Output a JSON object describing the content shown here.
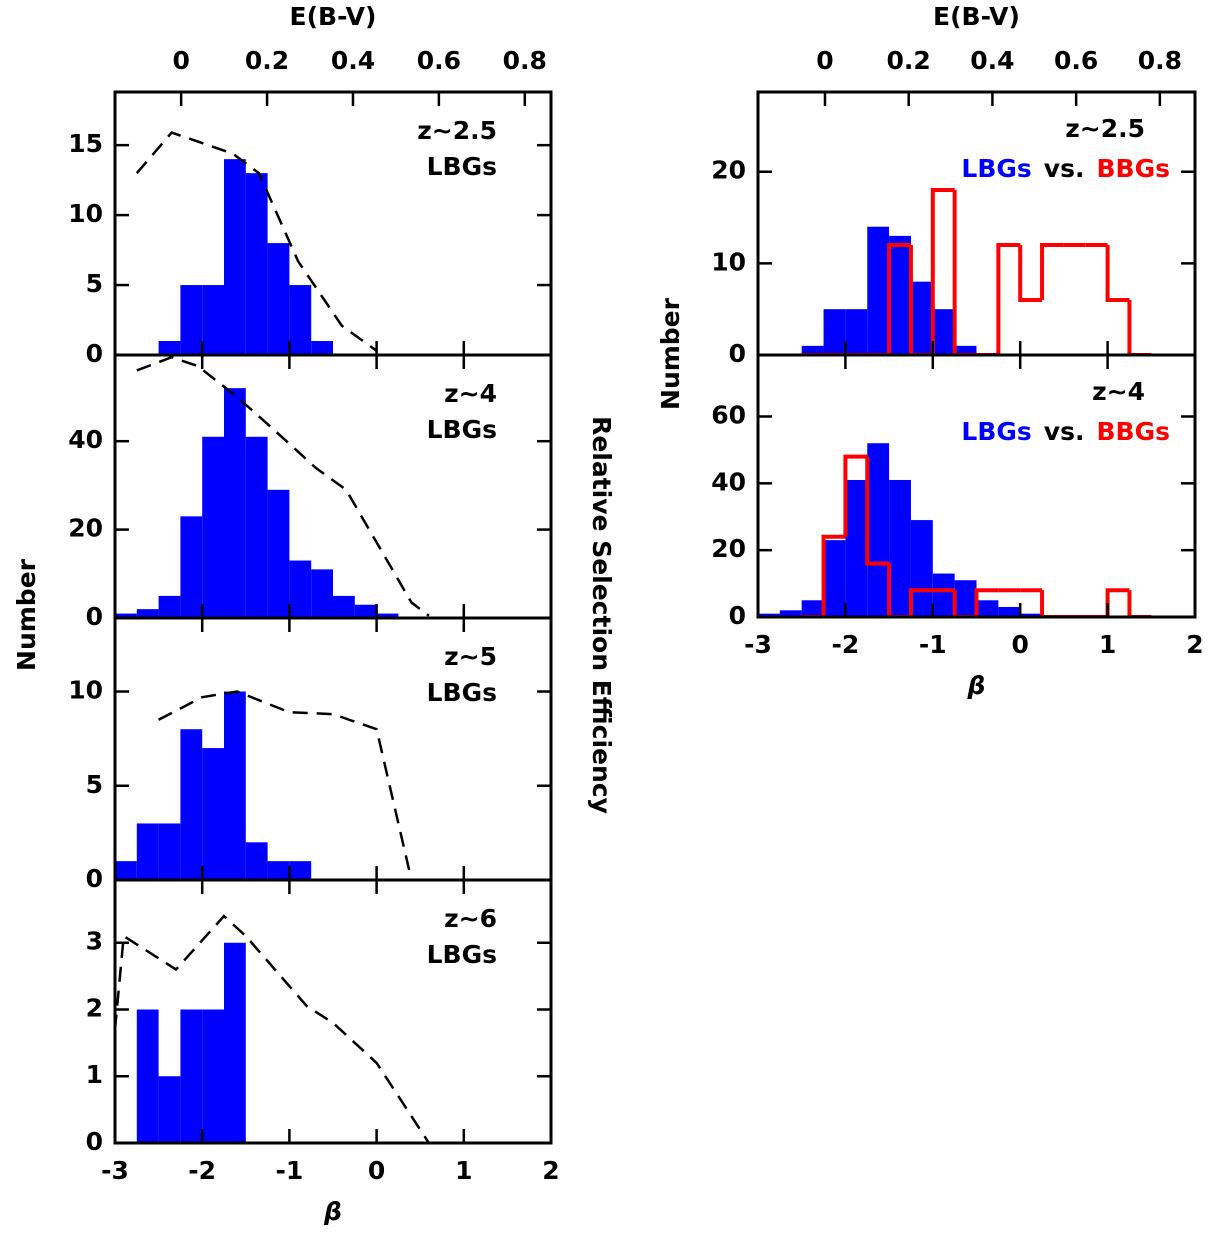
{
  "chart_data": [
    {
      "type": "histogram",
      "annotation": "z~2.5",
      "ylabel": "Number",
      "y2label": "Relative Selection Efficiency",
      "x2label": "E(B-V)",
      "x2lim": [
        -0.154,
        0.861
      ],
      "x2ticks": [
        0,
        0.2,
        0.4,
        0.6,
        0.8
      ],
      "xlim": [
        -3,
        2
      ],
      "xticks": [
        -3,
        -2,
        -1,
        0,
        1,
        2
      ],
      "ylim": [
        0,
        18.8
      ],
      "yticks": [
        0,
        5,
        10,
        15
      ],
      "series": [
        {
          "name": "LBGs",
          "color": "#0000ff",
          "style": "filled",
          "bins": [
            -2.5,
            -2.25,
            -2,
            -1.75,
            -1.5,
            -1.25,
            -1,
            -0.75,
            -0.5
          ],
          "values": [
            1,
            5,
            5,
            14,
            13,
            8,
            5,
            1
          ]
        }
      ],
      "efficiency": {
        "x": [
          -2.75,
          -2.35,
          -1.65,
          -1.35,
          -0.9,
          -0.4,
          0
        ],
        "values": [
          13,
          15.9,
          14.4,
          13,
          6.7,
          2.1,
          0.3
        ]
      }
    },
    {
      "type": "histogram",
      "annotation": "z~4",
      "xlim": [
        -3,
        2
      ],
      "xticks": [
        -3,
        -2,
        -1,
        0,
        1,
        2
      ],
      "ylim": [
        0,
        59.5
      ],
      "yticks": [
        0,
        20,
        40
      ],
      "series": [
        {
          "name": "LBGs",
          "color": "#0000ff",
          "style": "filled",
          "bins": [
            -3,
            -2.75,
            -2.5,
            -2.25,
            -2,
            -1.75,
            -1.5,
            -1.25,
            -1,
            -0.75,
            -0.5,
            -0.25,
            0,
            0.25
          ],
          "values": [
            1,
            2,
            5,
            23,
            41,
            52,
            41,
            29,
            13,
            11,
            5,
            3,
            1
          ]
        }
      ],
      "efficiency": {
        "x": [
          -2.75,
          -2.35,
          -2.05,
          -1.6,
          -1.2,
          -0.7,
          -0.35,
          0.4,
          0.6
        ],
        "values": [
          56,
          59,
          57,
          50,
          43,
          34,
          29,
          3.5,
          0.5
        ]
      }
    },
    {
      "type": "histogram",
      "annotation": "z~5",
      "xlim": [
        -3,
        2
      ],
      "xticks": [
        -3,
        -2,
        -1,
        0,
        1,
        2
      ],
      "ylim": [
        0,
        13.9
      ],
      "yticks": [
        0,
        5,
        10
      ],
      "series": [
        {
          "name": "LBGs",
          "color": "#0000ff",
          "style": "filled",
          "bins": [
            -3,
            -2.75,
            -2.5,
            -2.25,
            -2,
            -1.75,
            -1.5,
            -1.25,
            -1,
            -0.75
          ],
          "values": [
            1,
            3,
            3,
            8,
            7,
            10,
            2,
            1,
            1
          ]
        }
      ],
      "efficiency": {
        "x": [
          -2.5,
          -2,
          -1.6,
          -1,
          -0.5,
          0,
          0.4
        ],
        "values": [
          8.5,
          9.7,
          10,
          8.9,
          8.8,
          8,
          0
        ]
      }
    },
    {
      "type": "histogram",
      "annotation": "z~6",
      "xlabel": "β",
      "xlim": [
        -3,
        2
      ],
      "xticks": [
        -3,
        -2,
        -1,
        0,
        1,
        2
      ],
      "ylim": [
        0,
        3.94
      ],
      "yticks": [
        0,
        1,
        2,
        3
      ],
      "series": [
        {
          "name": "LBGs",
          "color": "#0000ff",
          "style": "filled",
          "bins": [
            -2.75,
            -2.5,
            -2.25,
            -2,
            -1.75,
            -1.5
          ],
          "values": [
            2,
            1,
            2,
            2,
            3
          ]
        }
      ],
      "efficiency": {
        "x": [
          -3,
          -2.9,
          -2.3,
          -1.75,
          -1.5,
          -0.8,
          -0.5,
          0,
          0.3,
          0.6
        ],
        "values": [
          1.7,
          3.1,
          2.6,
          3.4,
          3.1,
          2.05,
          1.8,
          1.2,
          0.6,
          0
        ]
      }
    },
    {
      "type": "histogram",
      "annotation": "z~2.5",
      "ylabel": "Number",
      "legend_separator": "vs.",
      "x2label": "E(B-V)",
      "x2lim": [
        -0.16,
        0.884
      ],
      "x2ticks": [
        0,
        0.2,
        0.4,
        0.6,
        0.8
      ],
      "xlim": [
        -3,
        2
      ],
      "xticks": [
        -3,
        -2,
        -1,
        0,
        1,
        2
      ],
      "ylim": [
        0,
        28.7
      ],
      "yticks": [
        0,
        10,
        20
      ],
      "series": [
        {
          "name": "LBGs",
          "color": "#0000ff",
          "style": "filled",
          "bins": [
            -2.5,
            -2.25,
            -2,
            -1.75,
            -1.5,
            -1.25,
            -1,
            -0.75,
            -0.5
          ],
          "values": [
            1,
            5,
            5,
            14,
            13,
            8,
            5,
            1
          ]
        },
        {
          "name": "BBGs",
          "color": "#ff0000",
          "style": "step",
          "bins": [
            -2.5,
            -2.25,
            -2,
            -1.75,
            -1.5,
            -1.25,
            -1,
            -0.75,
            -0.5,
            -0.25,
            0,
            0.25,
            0.5,
            0.75,
            1,
            1.25,
            1.5
          ],
          "values": [
            0,
            0,
            0,
            0,
            12,
            0,
            18,
            0,
            0,
            12,
            6,
            12,
            12,
            12,
            6,
            0
          ]
        }
      ]
    },
    {
      "type": "histogram",
      "annotation": "z~4",
      "legend_separator": "vs.",
      "xlabel": "β",
      "xlim": [
        -3,
        2
      ],
      "xticks": [
        -3,
        -2,
        -1,
        0,
        1,
        2
      ],
      "ylim": [
        0,
        78.4
      ],
      "yticks": [
        0,
        20,
        40,
        60
      ],
      "series": [
        {
          "name": "LBGs",
          "color": "#0000ff",
          "style": "filled",
          "bins": [
            -3,
            -2.75,
            -2.5,
            -2.25,
            -2,
            -1.75,
            -1.5,
            -1.25,
            -1,
            -0.75,
            -0.5,
            -0.25,
            0,
            0.25
          ],
          "values": [
            1,
            2,
            5,
            23,
            41,
            52,
            41,
            29,
            13,
            11,
            5,
            3,
            1
          ]
        },
        {
          "name": "BBGs",
          "color": "#ff0000",
          "style": "step",
          "bins": [
            -2.5,
            -2.25,
            -2,
            -1.75,
            -1.5,
            -1.25,
            -1,
            -0.75,
            -0.5,
            -0.25,
            0,
            0.25,
            0.5,
            0.75,
            1,
            1.25,
            1.5
          ],
          "values": [
            0,
            24,
            48,
            16,
            0,
            8,
            8,
            0,
            8,
            8,
            8,
            0,
            0,
            0,
            8,
            0
          ]
        }
      ]
    }
  ]
}
